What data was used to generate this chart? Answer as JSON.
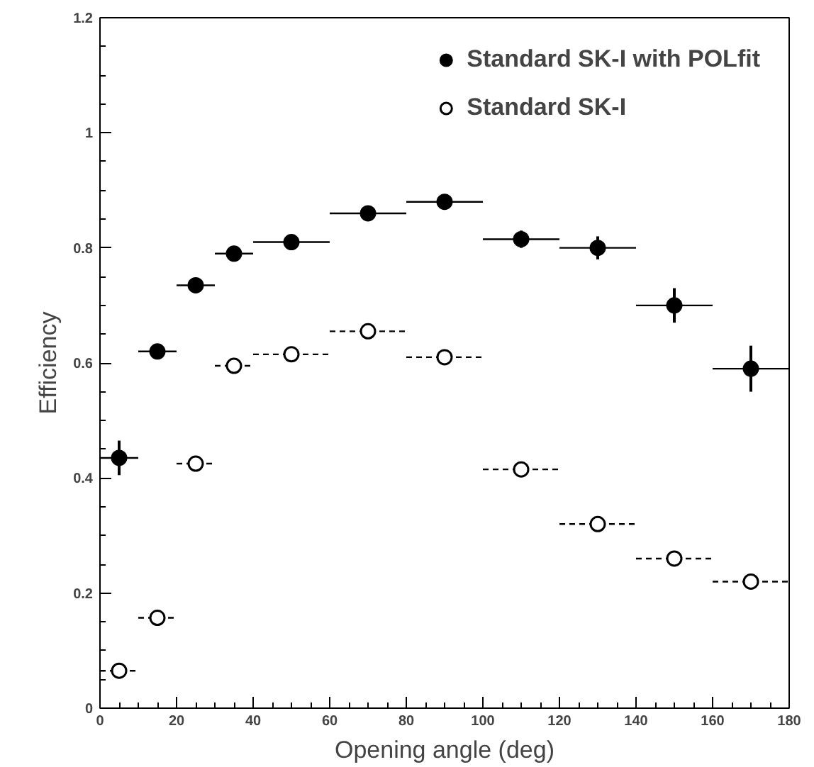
{
  "chart_data": {
    "type": "scatter",
    "xlabel": "Opening angle (deg)",
    "ylabel": "Efficiency",
    "x": [
      5,
      15,
      25,
      35,
      50,
      70,
      90,
      110,
      130,
      150,
      170
    ],
    "xlim": [
      0,
      180
    ],
    "xticks": [
      0,
      20,
      40,
      60,
      80,
      100,
      120,
      140,
      160,
      180
    ],
    "ylim": [
      0,
      1.2
    ],
    "yticks": [
      0,
      0.2,
      0.4,
      0.6,
      0.8,
      1,
      1.2
    ],
    "grid": false,
    "legend": "top right",
    "marker": "circle",
    "series": [
      {
        "name": "Standard SK-I with POLfit",
        "color": "#000000",
        "line_style": "solid",
        "values": [
          0.435,
          0.62,
          0.735,
          0.79,
          0.81,
          0.86,
          0.88,
          0.815,
          0.8,
          0.7,
          0.59
        ],
        "errors": [
          0.03,
          0.01,
          0.01,
          0.01,
          0.01,
          0.01,
          0.01,
          0.015,
          0.02,
          0.03,
          0.04
        ],
        "xerrors": [
          5,
          5,
          5,
          5,
          10,
          10,
          10,
          10,
          10,
          10,
          10
        ]
      },
      {
        "name": "Standard SK-I",
        "color": "#ffffff",
        "line_style": "dashed",
        "values": [
          0.065,
          0.157,
          0.425,
          0.595,
          0.615,
          0.655,
          0.61,
          0.415,
          0.32,
          0.26,
          0.22
        ],
        "xerrors": [
          5,
          5,
          5,
          5,
          10,
          10,
          10,
          10,
          10,
          10,
          10
        ]
      }
    ]
  }
}
